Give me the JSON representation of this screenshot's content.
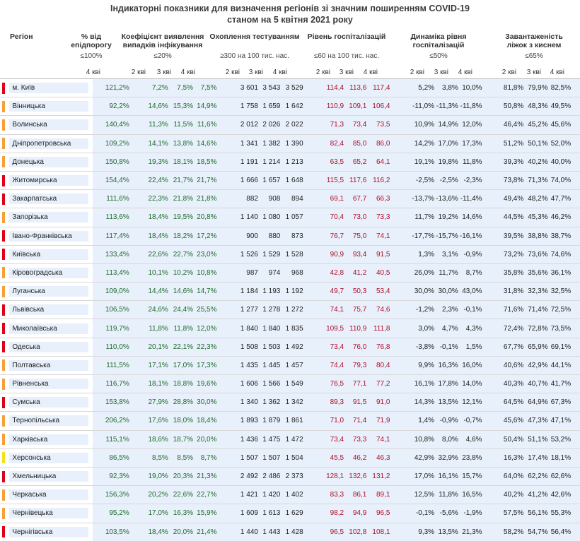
{
  "title_lines": [
    "Індикаторні показники для визначення регіонів зі значним поширенням COVID-19",
    "станом на 5 квітня 2021 року"
  ],
  "headers": {
    "region": "Регіон",
    "threshold_pct": "% від епідпорогу",
    "detection": "Коефіцієнт виявлення випадків інфікування",
    "testing": "Охоплення тестуванням",
    "hosp": "Рівень госпіталізацій",
    "hosp_dyn": "Динаміка рівня госпіталізацій",
    "beds": "Завантаженість ліжок з киснем"
  },
  "criteria": {
    "threshold_pct": "≤100%",
    "detection": "≤20%",
    "testing": "≥300 на 100 тис. нас.",
    "hosp": "≤60 на 100 тис. нас.",
    "hosp_dyn": "≤50%",
    "beds": "≤65%"
  },
  "quarters": {
    "q2": "2 кві",
    "q3": "3 кві",
    "q4": "4 кві"
  },
  "colors": {
    "red_marker": "#e0001a",
    "orange_marker": "#f5a03a",
    "yellow_marker": "#f4e21c",
    "green_value": "#1d6b2a",
    "red_value": "#b0102a",
    "band_background": "#e8f0fb"
  },
  "rows": [
    {
      "region": "м. Київ",
      "marker": "red",
      "pct": "121,2%",
      "det": [
        "7,2%",
        "7,5%",
        "7,5%"
      ],
      "test": [
        "3 601",
        "3 543",
        "3 529"
      ],
      "hosp": [
        "114,4",
        "113,6",
        "117,4"
      ],
      "dyn": [
        "5,2%",
        "3,8%",
        "10,0%"
      ],
      "beds": [
        "81,8%",
        "79,9%",
        "82,5%"
      ]
    },
    {
      "region": "Вінницька",
      "marker": "orange",
      "pct": "92,2%",
      "det": [
        "14,6%",
        "15,3%",
        "14,9%"
      ],
      "test": [
        "1 758",
        "1 659",
        "1 642"
      ],
      "hosp": [
        "110,9",
        "109,1",
        "106,4"
      ],
      "dyn": [
        "-11,0%",
        "-11,3%",
        "-11,8%"
      ],
      "beds": [
        "50,8%",
        "48,3%",
        "49,5%"
      ]
    },
    {
      "region": "Волинська",
      "marker": "orange",
      "pct": "140,4%",
      "det": [
        "11,3%",
        "11,5%",
        "11,6%"
      ],
      "test": [
        "2 012",
        "2 026",
        "2 022"
      ],
      "hosp": [
        "71,3",
        "73,4",
        "73,5"
      ],
      "dyn": [
        "10,9%",
        "14,9%",
        "12,0%"
      ],
      "beds": [
        "46,4%",
        "45,2%",
        "45,6%"
      ]
    },
    {
      "region": "Дніпропетровська",
      "marker": "orange",
      "pct": "109,2%",
      "det": [
        "14,1%",
        "13,8%",
        "14,6%"
      ],
      "test": [
        "1 341",
        "1 382",
        "1 390"
      ],
      "hosp": [
        "82,4",
        "85,0",
        "86,0"
      ],
      "dyn": [
        "14,2%",
        "17,0%",
        "17,3%"
      ],
      "beds": [
        "51,2%",
        "50,1%",
        "52,0%"
      ]
    },
    {
      "region": "Донецька",
      "marker": "orange",
      "pct": "150,8%",
      "det": [
        "19,3%",
        "18,1%",
        "18,5%"
      ],
      "test": [
        "1 191",
        "1 214",
        "1 213"
      ],
      "hosp": [
        "63,5",
        "65,2",
        "64,1"
      ],
      "dyn": [
        "19,1%",
        "19,8%",
        "11,8%"
      ],
      "beds": [
        "39,3%",
        "40,2%",
        "40,0%"
      ]
    },
    {
      "region": "Житомирська",
      "marker": "red",
      "pct": "154,4%",
      "det": [
        "22,4%",
        "21,7%",
        "21,7%"
      ],
      "test": [
        "1 666",
        "1 657",
        "1 648"
      ],
      "hosp": [
        "115,5",
        "117,6",
        "116,2"
      ],
      "dyn": [
        "-2,5%",
        "-2,5%",
        "-2,3%"
      ],
      "beds": [
        "73,8%",
        "71,3%",
        "74,0%"
      ]
    },
    {
      "region": "Закарпатська",
      "marker": "red",
      "pct": "111,6%",
      "det": [
        "22,3%",
        "21,8%",
        "21,8%"
      ],
      "test": [
        "882",
        "908",
        "894"
      ],
      "hosp": [
        "69,1",
        "67,7",
        "66,3"
      ],
      "dyn": [
        "-13,7%",
        "-13,6%",
        "-11,4%"
      ],
      "beds": [
        "49,4%",
        "48,2%",
        "47,7%"
      ]
    },
    {
      "region": "Запорізька",
      "marker": "orange",
      "pct": "113,6%",
      "det": [
        "18,4%",
        "19,5%",
        "20,8%"
      ],
      "test": [
        "1 140",
        "1 080",
        "1 057"
      ],
      "hosp": [
        "70,4",
        "73,0",
        "73,3"
      ],
      "dyn": [
        "11,7%",
        "19,2%",
        "14,6%"
      ],
      "beds": [
        "44,5%",
        "45,3%",
        "46,2%"
      ]
    },
    {
      "region": "Івано-Франківська",
      "marker": "red",
      "pct": "117,4%",
      "det": [
        "18,4%",
        "18,2%",
        "17,2%"
      ],
      "test": [
        "900",
        "880",
        "873"
      ],
      "hosp": [
        "76,7",
        "75,0",
        "74,1"
      ],
      "dyn": [
        "-17,7%",
        "-15,7%",
        "-16,1%"
      ],
      "beds": [
        "39,5%",
        "38,8%",
        "38,7%"
      ]
    },
    {
      "region": "Київська",
      "marker": "red",
      "pct": "133,4%",
      "det": [
        "22,6%",
        "22,7%",
        "23,0%"
      ],
      "test": [
        "1 526",
        "1 529",
        "1 528"
      ],
      "hosp": [
        "90,9",
        "93,4",
        "91,5"
      ],
      "dyn": [
        "1,3%",
        "3,1%",
        "-0,9%"
      ],
      "beds": [
        "73,2%",
        "73,6%",
        "74,6%"
      ]
    },
    {
      "region": "Кіровоградська",
      "marker": "orange",
      "pct": "113,4%",
      "det": [
        "10,1%",
        "10,2%",
        "10,8%"
      ],
      "test": [
        "987",
        "974",
        "968"
      ],
      "hosp": [
        "42,8",
        "41,2",
        "40,5"
      ],
      "dyn": [
        "26,0%",
        "11,7%",
        "8,7%"
      ],
      "beds": [
        "35,8%",
        "35,6%",
        "36,1%"
      ]
    },
    {
      "region": "Луганська",
      "marker": "orange",
      "pct": "109,0%",
      "det": [
        "14,4%",
        "14,6%",
        "14,7%"
      ],
      "test": [
        "1 184",
        "1 193",
        "1 192"
      ],
      "hosp": [
        "49,7",
        "50,3",
        "53,4"
      ],
      "dyn": [
        "30,0%",
        "30,0%",
        "43,0%"
      ],
      "beds": [
        "31,8%",
        "32,3%",
        "32,5%"
      ]
    },
    {
      "region": "Львівська",
      "marker": "red",
      "pct": "106,5%",
      "det": [
        "24,6%",
        "24,4%",
        "25,5%"
      ],
      "test": [
        "1 277",
        "1 278",
        "1 272"
      ],
      "hosp": [
        "74,1",
        "75,7",
        "74,6"
      ],
      "dyn": [
        "-1,2%",
        "2,3%",
        "-0,1%"
      ],
      "beds": [
        "71,6%",
        "71,4%",
        "72,5%"
      ]
    },
    {
      "region": "Миколаївська",
      "marker": "red",
      "pct": "119,7%",
      "det": [
        "11,8%",
        "11,8%",
        "12,0%"
      ],
      "test": [
        "1 840",
        "1 840",
        "1 835"
      ],
      "hosp": [
        "109,5",
        "110,9",
        "111,8"
      ],
      "dyn": [
        "3,0%",
        "4,7%",
        "4,3%"
      ],
      "beds": [
        "72,4%",
        "72,8%",
        "73,5%"
      ]
    },
    {
      "region": "Одеська",
      "marker": "red",
      "pct": "110,0%",
      "det": [
        "20,1%",
        "22,1%",
        "22,3%"
      ],
      "test": [
        "1 508",
        "1 503",
        "1 492"
      ],
      "hosp": [
        "73,4",
        "76,0",
        "76,8"
      ],
      "dyn": [
        "-3,8%",
        "-0,1%",
        "1,5%"
      ],
      "beds": [
        "67,7%",
        "65,9%",
        "69,1%"
      ]
    },
    {
      "region": "Полтавська",
      "marker": "orange",
      "pct": "111,5%",
      "det": [
        "17,1%",
        "17,0%",
        "17,3%"
      ],
      "test": [
        "1 435",
        "1 445",
        "1 457"
      ],
      "hosp": [
        "74,4",
        "79,3",
        "80,4"
      ],
      "dyn": [
        "9,9%",
        "16,3%",
        "16,0%"
      ],
      "beds": [
        "40,6%",
        "42,9%",
        "44,1%"
      ]
    },
    {
      "region": "Рівненська",
      "marker": "orange",
      "pct": "116,7%",
      "det": [
        "18,1%",
        "18,8%",
        "19,6%"
      ],
      "test": [
        "1 606",
        "1 566",
        "1 549"
      ],
      "hosp": [
        "76,5",
        "77,1",
        "77,2"
      ],
      "dyn": [
        "16,1%",
        "17,8%",
        "14,0%"
      ],
      "beds": [
        "40,3%",
        "40,7%",
        "41,7%"
      ]
    },
    {
      "region": "Сумська",
      "marker": "red",
      "pct": "153,8%",
      "det": [
        "27,9%",
        "28,8%",
        "30,0%"
      ],
      "test": [
        "1 340",
        "1 362",
        "1 342"
      ],
      "hosp": [
        "89,3",
        "91,5",
        "91,0"
      ],
      "dyn": [
        "14,3%",
        "13,5%",
        "12,1%"
      ],
      "beds": [
        "64,5%",
        "64,9%",
        "67,3%"
      ]
    },
    {
      "region": "Тернопільська",
      "marker": "orange",
      "pct": "206,2%",
      "det": [
        "17,6%",
        "18,0%",
        "18,4%"
      ],
      "test": [
        "1 893",
        "1 879",
        "1 861"
      ],
      "hosp": [
        "71,0",
        "71,4",
        "71,9"
      ],
      "dyn": [
        "1,4%",
        "-0,9%",
        "-0,7%"
      ],
      "beds": [
        "45,6%",
        "47,3%",
        "47,1%"
      ]
    },
    {
      "region": "Харківська",
      "marker": "orange",
      "pct": "115,1%",
      "det": [
        "18,6%",
        "18,7%",
        "20,0%"
      ],
      "test": [
        "1 436",
        "1 475",
        "1 472"
      ],
      "hosp": [
        "73,4",
        "73,3",
        "74,1"
      ],
      "dyn": [
        "10,8%",
        "8,0%",
        "4,6%"
      ],
      "beds": [
        "50,4%",
        "51,1%",
        "53,2%"
      ]
    },
    {
      "region": "Херсонська",
      "marker": "yellow",
      "pct": "86,5%",
      "det": [
        "8,5%",
        "8,5%",
        "8,7%"
      ],
      "test": [
        "1 507",
        "1 507",
        "1 504"
      ],
      "hosp": [
        "45,5",
        "46,2",
        "46,3"
      ],
      "dyn": [
        "42,9%",
        "32,9%",
        "23,8%"
      ],
      "beds": [
        "16,3%",
        "17,4%",
        "18,1%"
      ]
    },
    {
      "region": "Хмельницька",
      "marker": "red",
      "pct": "92,3%",
      "det": [
        "19,0%",
        "20,3%",
        "21,3%"
      ],
      "test": [
        "2 492",
        "2 486",
        "2 373"
      ],
      "hosp": [
        "128,1",
        "132,6",
        "131,2"
      ],
      "dyn": [
        "17,0%",
        "16,1%",
        "15,7%"
      ],
      "beds": [
        "64,0%",
        "62,2%",
        "62,6%"
      ]
    },
    {
      "region": "Черкаська",
      "marker": "orange",
      "pct": "156,3%",
      "det": [
        "20,2%",
        "22,6%",
        "22,7%"
      ],
      "test": [
        "1 421",
        "1 420",
        "1 402"
      ],
      "hosp": [
        "83,3",
        "86,1",
        "89,1"
      ],
      "dyn": [
        "12,5%",
        "11,8%",
        "16,5%"
      ],
      "beds": [
        "40,2%",
        "41,2%",
        "42,6%"
      ]
    },
    {
      "region": "Чернівецька",
      "marker": "orange",
      "pct": "95,2%",
      "det": [
        "17,0%",
        "16,3%",
        "15,9%"
      ],
      "test": [
        "1 609",
        "1 613",
        "1 629"
      ],
      "hosp": [
        "98,2",
        "94,9",
        "96,5"
      ],
      "dyn": [
        "-0,1%",
        "-5,6%",
        "-1,9%"
      ],
      "beds": [
        "57,5%",
        "56,1%",
        "55,3%"
      ]
    },
    {
      "region": "Чернігівська",
      "marker": "red",
      "pct": "103,5%",
      "det": [
        "18,4%",
        "20,0%",
        "21,4%"
      ],
      "test": [
        "1 440",
        "1 443",
        "1 428"
      ],
      "hosp": [
        "96,5",
        "102,8",
        "108,1"
      ],
      "dyn": [
        "9,3%",
        "13,5%",
        "21,3%"
      ],
      "beds": [
        "58,2%",
        "54,7%",
        "56,4%"
      ]
    }
  ]
}
